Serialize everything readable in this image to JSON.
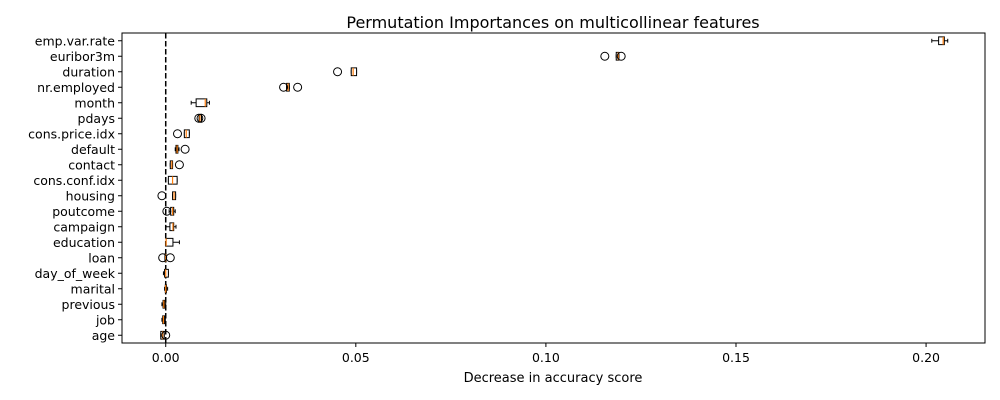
{
  "chart_data": {
    "type": "boxplot",
    "orientation": "horizontal",
    "title": "Permutation Importances on multicollinear features",
    "xlabel": "Decrease in accuracy score",
    "ylabel": "",
    "xlim": [
      -0.0115,
      0.2155
    ],
    "xticks": [
      0.0,
      0.05,
      0.1,
      0.15,
      0.2
    ],
    "xtick_labels": [
      "0.00",
      "0.05",
      "0.10",
      "0.15",
      "0.20"
    ],
    "reference_line": {
      "x": 0.0,
      "style": "dashed"
    },
    "grid": false,
    "colors": {
      "box": "#000000",
      "median": "#ff7f0e",
      "reference": "#000000"
    },
    "features": [
      {
        "name": "emp.var.rate",
        "whislo": 0.2015,
        "q1": 0.2033,
        "med": 0.2045,
        "q3": 0.2048,
        "whishi": 0.2057,
        "fliers": []
      },
      {
        "name": "euribor3m",
        "whislo": 0.1185,
        "q1": 0.1185,
        "med": 0.119,
        "q3": 0.1192,
        "whishi": 0.1192,
        "fliers": [
          0.1155,
          0.1198
        ]
      },
      {
        "name": "duration",
        "whislo": 0.0488,
        "q1": 0.0488,
        "med": 0.0493,
        "q3": 0.0502,
        "whishi": 0.0502,
        "fliers": [
          0.0452
        ]
      },
      {
        "name": "nr.employed",
        "whislo": 0.0318,
        "q1": 0.0318,
        "med": 0.0322,
        "q3": 0.0325,
        "whishi": 0.0325,
        "fliers": [
          0.031,
          0.0347
        ]
      },
      {
        "name": "month",
        "whislo": 0.0067,
        "q1": 0.008,
        "med": 0.0104,
        "q3": 0.0108,
        "whishi": 0.0115,
        "fliers": []
      },
      {
        "name": "pdays",
        "whislo": 0.0088,
        "q1": 0.0088,
        "med": 0.009,
        "q3": 0.0094,
        "whishi": 0.0094,
        "fliers": [
          0.0087,
          0.0093
        ]
      },
      {
        "name": "cons.price.idx",
        "whislo": 0.0049,
        "q1": 0.0049,
        "med": 0.0054,
        "q3": 0.0062,
        "whishi": 0.0062,
        "fliers": [
          0.0031
        ]
      },
      {
        "name": "default",
        "whislo": 0.0025,
        "q1": 0.0027,
        "med": 0.003,
        "q3": 0.0032,
        "whishi": 0.0035,
        "fliers": [
          0.0051
        ]
      },
      {
        "name": "contact",
        "whislo": 0.0012,
        "q1": 0.0012,
        "med": 0.0016,
        "q3": 0.0018,
        "whishi": 0.0018,
        "fliers": [
          0.0036
        ]
      },
      {
        "name": "cons.conf.idx",
        "whislo": 0.0007,
        "q1": 0.0007,
        "med": 0.0018,
        "q3": 0.003,
        "whishi": 0.003,
        "fliers": []
      },
      {
        "name": "housing",
        "whislo": 0.0018,
        "q1": 0.0018,
        "med": 0.0022,
        "q3": 0.0026,
        "whishi": 0.0026,
        "fliers": [
          -0.001
        ]
      },
      {
        "name": "poutcome",
        "whislo": 0.0009,
        "q1": 0.0013,
        "med": 0.0018,
        "q3": 0.0021,
        "whishi": 0.0025,
        "fliers": [
          0.0003
        ]
      },
      {
        "name": "campaign",
        "whislo": 0.0,
        "q1": 0.0011,
        "med": 0.0019,
        "q3": 0.0021,
        "whishi": 0.0027,
        "fliers": []
      },
      {
        "name": "education",
        "whislo": 0.0001,
        "q1": 0.0001,
        "med": 0.0001,
        "q3": 0.0019,
        "whishi": 0.0036,
        "fliers": []
      },
      {
        "name": "loan",
        "whislo": -0.0002,
        "q1": -0.0002,
        "med": 0.0,
        "q3": 0.0001,
        "whishi": 0.0001,
        "fliers": [
          -0.0008,
          0.0012
        ]
      },
      {
        "name": "day_of_week",
        "whislo": -0.0006,
        "q1": -0.0003,
        "med": 0.0,
        "q3": 0.0007,
        "whishi": 0.0007,
        "fliers": []
      },
      {
        "name": "marital",
        "whislo": -0.0003,
        "q1": -0.0001,
        "med": 0.0,
        "q3": 0.0002,
        "whishi": 0.0005,
        "fliers": []
      },
      {
        "name": "previous",
        "whislo": -0.001,
        "q1": -0.0007,
        "med": -0.0005,
        "q3": -0.0003,
        "whishi": 0.0,
        "fliers": []
      },
      {
        "name": "job",
        "whislo": -0.001,
        "q1": -0.0008,
        "med": -0.0006,
        "q3": -0.0003,
        "whishi": -0.0001,
        "fliers": []
      },
      {
        "name": "age",
        "whislo": -0.0013,
        "q1": -0.0013,
        "med": -0.0008,
        "q3": -0.0004,
        "whishi": -0.0004,
        "fliers": [
          0.0
        ]
      }
    ]
  }
}
